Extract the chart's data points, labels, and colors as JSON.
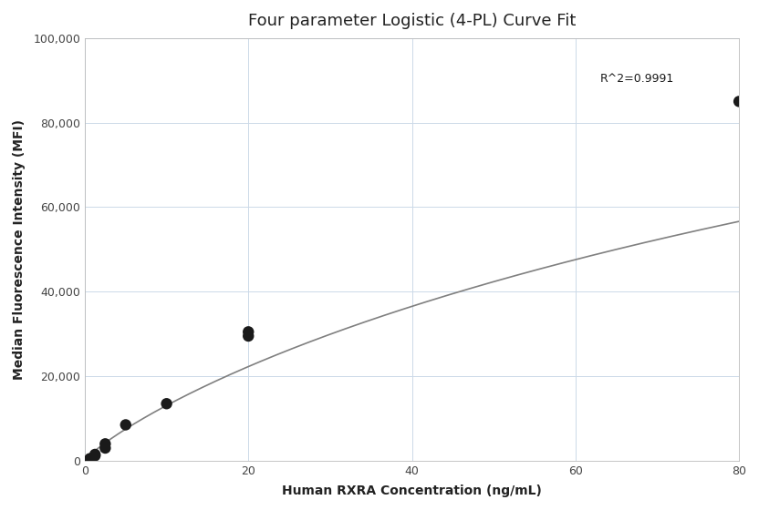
{
  "title": "Four parameter Logistic (4-PL) Curve Fit",
  "xlabel": "Human RXRA Concentration (ng/mL)",
  "ylabel": "Median Fluorescence Intensity (MFI)",
  "scatter_x": [
    0.625,
    1.25,
    1.25,
    2.5,
    2.5,
    5.0,
    10.0,
    20.0,
    20.0,
    80.0
  ],
  "scatter_y": [
    500,
    1200,
    1500,
    3000,
    4000,
    8500,
    13500,
    29500,
    30500,
    85000
  ],
  "r2_text": "R^2=0.9991",
  "r2_x": 63,
  "r2_y": 89000,
  "xlim": [
    0,
    80
  ],
  "ylim": [
    0,
    100000
  ],
  "xticks": [
    0,
    20,
    40,
    60,
    80
  ],
  "yticks": [
    0,
    20000,
    40000,
    60000,
    80000,
    100000
  ],
  "ytick_labels": [
    "0",
    "20,000",
    "40,000",
    "60,000",
    "80,000",
    "100,000"
  ],
  "dot_color": "#1a1a1a",
  "dot_size": 80,
  "line_color": "#808080",
  "line_width": 1.2,
  "grid_color": "#ccd9e8",
  "background_color": "#ffffff",
  "title_fontsize": 13,
  "label_fontsize": 10,
  "tick_fontsize": 9,
  "annotation_fontsize": 9,
  "4pl_A": 0,
  "4pl_B": 0.85,
  "4pl_C": 200,
  "4pl_D": 180000
}
